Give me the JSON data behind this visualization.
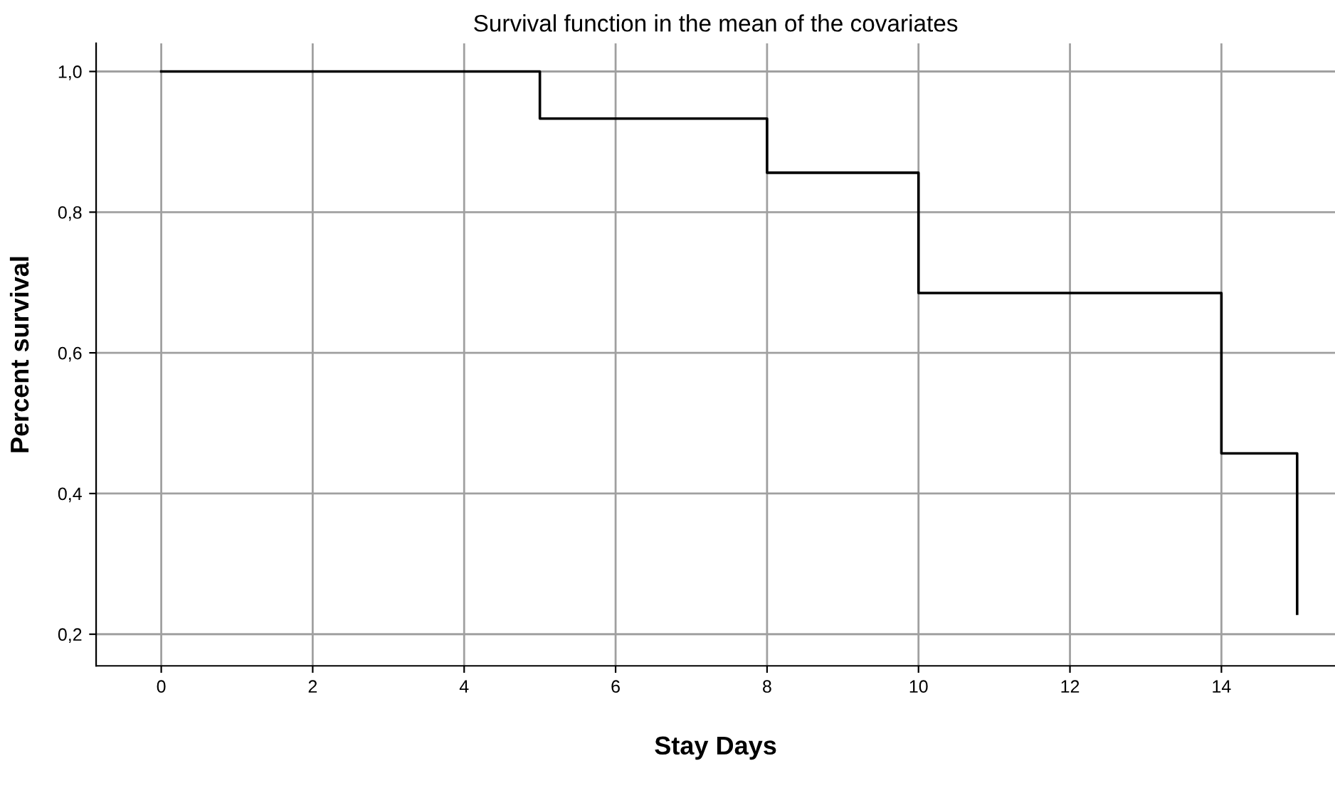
{
  "chart_data": {
    "type": "step",
    "title": "Survival function in the mean of the covariates",
    "xlabel": "Stay Days",
    "ylabel": "Percent survival",
    "x": [
      0,
      5,
      8,
      10,
      14,
      15
    ],
    "series": [
      {
        "color": "#000000",
        "values": [
          1.0,
          0.933,
          0.856,
          0.685,
          0.457,
          0.229
        ]
      }
    ],
    "xlim": [
      -0.86,
      15.5
    ],
    "xticks": [
      0,
      2,
      4,
      6,
      8,
      10,
      12,
      14
    ],
    "ylim": [
      0.155,
      1.04
    ],
    "yticks": [
      {
        "value": 0.2,
        "label": "0,2"
      },
      {
        "value": 0.4,
        "label": "0,4"
      },
      {
        "value": 0.6,
        "label": "0,6"
      },
      {
        "value": 0.8,
        "label": "0,8"
      },
      {
        "value": 1.0,
        "label": "1,0"
      }
    ],
    "grid": true,
    "legend": false
  }
}
